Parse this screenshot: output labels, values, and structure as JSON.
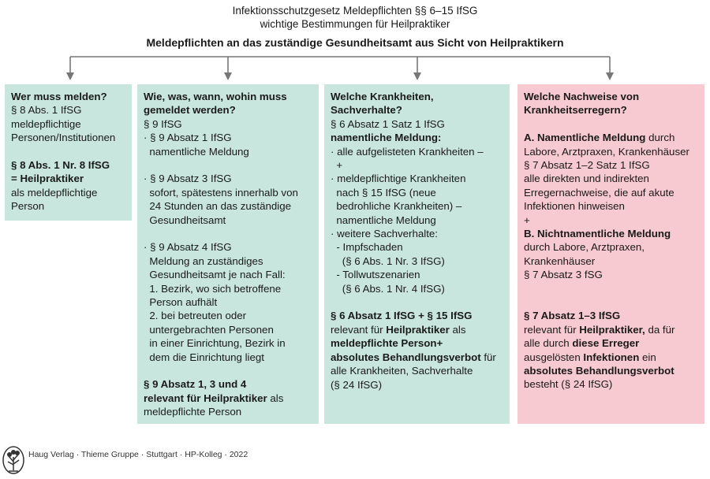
{
  "header": {
    "title_line1": "Infektionsschutzgesetz Meldepflichten §§ 6–15 IfSG",
    "title_line2": "wichtige Bestimmungen für Heilpraktiker",
    "subtitle": "Meldepflichten an das zuständige Gesundheitsamt aus Sicht von Heilpraktikern"
  },
  "colors": {
    "green_box": "#c8e6dd",
    "pink_box": "#f7c9d1",
    "connector": "#777777"
  },
  "boxes": [
    {
      "id": "wer",
      "color": "green",
      "lines": [
        [
          {
            "t": "Wer muss melden?",
            "b": true
          }
        ],
        [
          {
            "t": "§ 8 Abs. 1 IfSG"
          }
        ],
        [
          {
            "t": "meldepflichtige"
          }
        ],
        [
          {
            "t": "Personen/Institutionen"
          }
        ],
        [],
        [
          {
            "t": "§ 8 Abs. 1 Nr. 8 IfSG",
            "b": true
          }
        ],
        [
          {
            "t": "= Heilpraktiker",
            "b": true
          }
        ],
        [
          {
            "t": "als meldepflichtige"
          }
        ],
        [
          {
            "t": "Person"
          }
        ]
      ]
    },
    {
      "id": "wie",
      "color": "green",
      "lines": [
        [
          {
            "t": "Wie, was, wann, wohin muss",
            "b": true
          }
        ],
        [
          {
            "t": "gemeldet werden?",
            "b": true
          }
        ],
        [
          {
            "t": "§ 9 IfSG"
          }
        ],
        [
          {
            "t": "· § 9 Absatz 1 IfSG"
          }
        ],
        [
          {
            "t": "  namentliche Meldung"
          }
        ],
        [],
        [
          {
            "t": "· § 9 Absatz 3 IfSG"
          }
        ],
        [
          {
            "t": "  sofort, spätestens innerhalb von"
          }
        ],
        [
          {
            "t": "  24 Stunden an das zuständige"
          }
        ],
        [
          {
            "t": "  Gesundheitsamt"
          }
        ],
        [],
        [
          {
            "t": "· § 9 Absatz 4 IfSG"
          }
        ],
        [
          {
            "t": "  Meldung an zuständiges"
          }
        ],
        [
          {
            "t": "  Gesundheitsamt je nach Fall:"
          }
        ],
        [
          {
            "t": "  1. Bezirk, wo sich betroffene"
          }
        ],
        [
          {
            "t": "  Person aufhält"
          }
        ],
        [
          {
            "t": "  2. bei betreuten oder"
          }
        ],
        [
          {
            "t": "  untergebrachten Personen"
          }
        ],
        [
          {
            "t": "  in einer Einrichtung, Bezirk in"
          }
        ],
        [
          {
            "t": "  dem die Einrichtung liegt"
          }
        ],
        [],
        [
          {
            "t": "§ 9 Absatz 1, 3 und 4",
            "b": true
          }
        ],
        [
          {
            "t": "relevant für Heilpraktiker",
            "b": true
          },
          {
            "t": " als"
          }
        ],
        [
          {
            "t": "meldepflichte Person"
          }
        ]
      ]
    },
    {
      "id": "welche-krankheiten",
      "color": "green",
      "lines": [
        [
          {
            "t": "Welche Krankheiten,",
            "b": true
          }
        ],
        [
          {
            "t": "Sachverhalte?",
            "b": true
          }
        ],
        [
          {
            "t": "§ 6 Absatz 1 Satz 1 IfSG"
          }
        ],
        [
          {
            "t": "namentliche Meldung:",
            "b": true
          }
        ],
        [
          {
            "t": "· alle aufgelisteten Krankheiten –"
          }
        ],
        [
          {
            "t": "  +"
          }
        ],
        [
          {
            "t": "· meldepflichtige Krankheiten"
          }
        ],
        [
          {
            "t": "  nach § 15 IfSG (neue"
          }
        ],
        [
          {
            "t": "  bedrohliche Krankheiten) –"
          }
        ],
        [
          {
            "t": "  namentliche Meldung"
          }
        ],
        [
          {
            "t": "· weitere Sachverhalte:"
          }
        ],
        [
          {
            "t": "  - Impfschaden"
          }
        ],
        [
          {
            "t": "    (§ 6 Abs. 1 Nr. 3 IfSG)"
          }
        ],
        [
          {
            "t": "  - Tollwutszenarien"
          }
        ],
        [
          {
            "t": "    (§ 6 Abs. 1 Nr. 4 IfSG)"
          }
        ],
        [],
        [
          {
            "t": "§ 6 Absatz 1 IfSG + § 15 IfSG",
            "b": true
          }
        ],
        [
          {
            "t": "relevant für "
          },
          {
            "t": "Heilpraktiker",
            "b": true
          },
          {
            "t": " als"
          }
        ],
        [
          {
            "t": "meldepflichte Person+",
            "b": true
          }
        ],
        [
          {
            "t": "absolutes Behandlungsverbot",
            "b": true
          },
          {
            "t": " für"
          }
        ],
        [
          {
            "t": "alle Krankheiten, Sachverhalte"
          }
        ],
        [
          {
            "t": "(§ 24 IfSG)"
          }
        ]
      ]
    },
    {
      "id": "welche-nachweise",
      "color": "pink",
      "lines": [
        [
          {
            "t": "Welche Nachweise von",
            "b": true
          }
        ],
        [
          {
            "t": "Krankheitserregern?",
            "b": true
          }
        ],
        [],
        [
          {
            "t": "A. Namentliche Meldung",
            "b": true
          },
          {
            "t": " durch"
          }
        ],
        [
          {
            "t": "Labore, Arztpraxen, Krankenhäuser"
          }
        ],
        [
          {
            "t": "§ 7 Absatz 1–2 Satz 1 IfSG"
          }
        ],
        [
          {
            "t": "alle direkten und indirekten"
          }
        ],
        [
          {
            "t": "Erregernachweise, die auf akute"
          }
        ],
        [
          {
            "t": "Infektionen hinweisen"
          }
        ],
        [
          {
            "t": "+"
          }
        ],
        [
          {
            "t": "B. Nichtnamentliche Meldung",
            "b": true
          }
        ],
        [
          {
            "t": "durch Labore, Arztpraxen,"
          }
        ],
        [
          {
            "t": "Krankenhäuser"
          }
        ],
        [
          {
            "t": "§ 7 Absatz 3 fSG"
          }
        ],
        [],
        [],
        [
          {
            "t": "§ 7 Absatz 1–3 IfSG",
            "b": true
          }
        ],
        [
          {
            "t": "relevant für "
          },
          {
            "t": "Heilpraktiker,",
            "b": true
          },
          {
            "t": " da für"
          }
        ],
        [
          {
            "t": "alle durch "
          },
          {
            "t": "diese Erreger",
            "b": true
          }
        ],
        [
          {
            "t": "ausgelösten "
          },
          {
            "t": "Infektionen",
            "b": true
          },
          {
            "t": " ein"
          }
        ],
        [
          {
            "t": "absolutes Behandlungsverbot",
            "b": true
          }
        ],
        [
          {
            "t": "besteht (§ 24 IfSG)"
          }
        ]
      ]
    }
  ],
  "footer": {
    "credit": "Haug Verlag · Thieme Gruppe · Stuttgart · HP-Kolleg · 2022",
    "logo_icon": "tree-logo-icon"
  }
}
